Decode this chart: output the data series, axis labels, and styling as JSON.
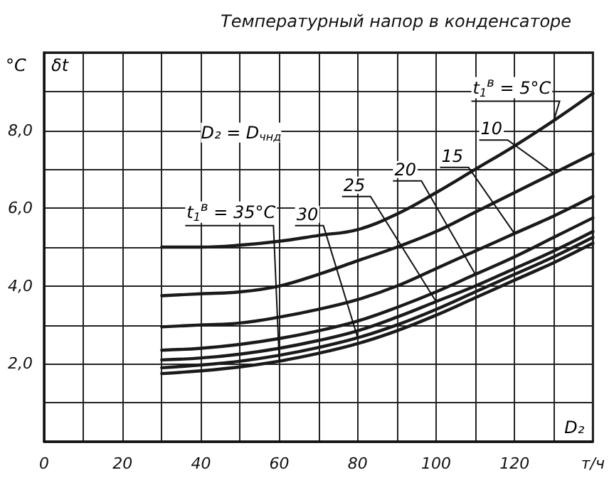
{
  "chart_data": {
    "type": "line",
    "title": "Температурный напор в конденсаторе",
    "xlabel": "D₂",
    "ylabel": "δt",
    "annotations": [
      "°C",
      "D₂ = D$_{чнд}$"
    ],
    "x": [
      30,
      40,
      50,
      60,
      70,
      80,
      90,
      100,
      110,
      120,
      130,
      140
    ],
    "series": [
      {
        "name": "t$_{1}$$^{в}$ = 5°C",
        "color": "#1a1a1a",
        "values": [
          5.0,
          5.0,
          5.05,
          5.15,
          5.3,
          5.45,
          5.85,
          6.4,
          7.0,
          7.6,
          8.25,
          8.95
        ]
      },
      {
        "name": "10",
        "color": "#1a1a1a",
        "values": [
          3.75,
          3.8,
          3.85,
          4.0,
          4.3,
          4.65,
          5.0,
          5.4,
          5.9,
          6.4,
          6.9,
          7.4
        ]
      },
      {
        "name": "15",
        "color": "#1a1a1a",
        "values": [
          2.95,
          3.0,
          3.05,
          3.2,
          3.4,
          3.65,
          4.0,
          4.45,
          4.9,
          5.35,
          5.8,
          6.3
        ]
      },
      {
        "name": "20",
        "color": "#1a1a1a",
        "values": [
          2.35,
          2.4,
          2.5,
          2.65,
          2.85,
          3.1,
          3.45,
          3.85,
          4.3,
          4.75,
          5.25,
          5.75
        ]
      },
      {
        "name": "25",
        "color": "#1a1a1a",
        "values": [
          2.1,
          2.15,
          2.25,
          2.4,
          2.6,
          2.85,
          3.2,
          3.6,
          4.0,
          4.45,
          4.9,
          5.4
        ]
      },
      {
        "name": "30",
        "color": "#1a1a1a",
        "values": [
          1.9,
          1.97,
          2.07,
          2.22,
          2.42,
          2.67,
          3.0,
          3.4,
          3.85,
          4.3,
          4.75,
          5.25
        ]
      },
      {
        "name": "t$_{1}$$^{в}$ = 35°C",
        "color": "#1a1a1a",
        "values": [
          1.75,
          1.82,
          1.92,
          2.07,
          2.27,
          2.52,
          2.85,
          3.25,
          3.7,
          4.15,
          4.6,
          5.1
        ]
      }
    ],
    "xlim": [
      0,
      140
    ],
    "xticks": [
      0,
      {
        "value": 10,
        "label": null
      },
      20,
      {
        "value": 30,
        "label": null
      },
      40,
      {
        "value": 50,
        "label": null
      },
      60,
      {
        "value": 70,
        "label": null
      },
      80,
      {
        "value": 90,
        "label": null
      },
      100,
      {
        "value": 110,
        "label": null
      },
      120,
      {
        "value": 130,
        "label": null
      },
      {
        "value": 140,
        "label": "т/ч"
      }
    ],
    "ylim": [
      0,
      10
    ],
    "yticks": [
      {
        "value": 0,
        "label": null
      },
      {
        "value": 1,
        "label": null
      },
      {
        "value": 2,
        "label": "2,0"
      },
      {
        "value": 3,
        "label": null
      },
      {
        "value": 4,
        "label": "4,0"
      },
      {
        "value": 5,
        "label": null
      },
      {
        "value": 6,
        "label": "6,0"
      },
      {
        "value": 7,
        "label": null
      },
      {
        "value": 8,
        "label": "8,0"
      },
      {
        "value": 9,
        "label": null
      },
      {
        "value": 10,
        "label": null
      }
    ],
    "grid": true,
    "legend": false,
    "marker": "none",
    "line_style": "solid"
  }
}
